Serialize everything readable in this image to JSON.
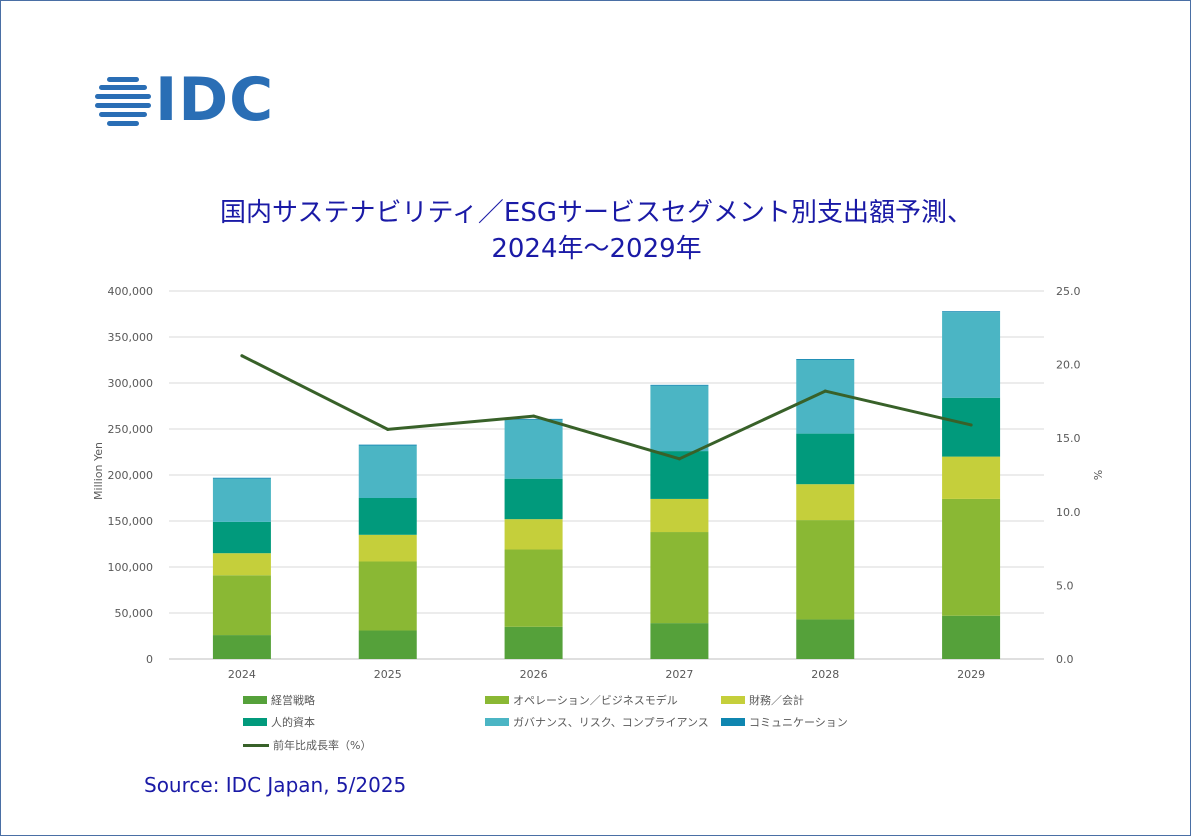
{
  "logo": {
    "text": "IDC"
  },
  "title_line1": "国内サステナビリティ／ESGサービスセグメント別支出額予測、",
  "title_line2": "2024年～2029年",
  "source": "Source: IDC Japan, 5/2025",
  "colors": {
    "keiei": "#55a13a",
    "operation": "#8ab834",
    "zaimu": "#c5cf3b",
    "jinteki": "#019a7c",
    "governance": "#4bb5c4",
    "communication": "#0f86b0",
    "growth": "#386129",
    "title": "#1a1aa6",
    "logo": "#2a6eb5"
  },
  "chart_data": {
    "type": "bar",
    "stacked": true,
    "categories": [
      "2024",
      "2025",
      "2026",
      "2027",
      "2028",
      "2029"
    ],
    "ylabel": "Million Yen",
    "y2label": "%",
    "ylim": [
      0,
      400000
    ],
    "y2lim": [
      0,
      25
    ],
    "yticks": [
      "0",
      "50,000",
      "100,000",
      "150,000",
      "200,000",
      "250,000",
      "300,000",
      "350,000",
      "400,000"
    ],
    "y2ticks": [
      "0.0",
      "5.0",
      "10.0",
      "15.0",
      "20.0",
      "25.0"
    ],
    "series": [
      {
        "key": "keiei",
        "name": "経営戦略",
        "values": [
          26000,
          31000,
          35000,
          39000,
          43000,
          47000
        ]
      },
      {
        "key": "operation",
        "name": "オペレーション／ビジネスモデル",
        "values": [
          65000,
          75000,
          84000,
          99000,
          108000,
          127000
        ]
      },
      {
        "key": "zaimu",
        "name": "財務／会計",
        "values": [
          24000,
          29000,
          33000,
          36000,
          39000,
          46000
        ]
      },
      {
        "key": "jinteki",
        "name": "人的資本",
        "values": [
          34000,
          40000,
          44000,
          52000,
          55000,
          64000
        ]
      },
      {
        "key": "governance",
        "name": "ガバナンス、リスク、コンプライアンス",
        "values": [
          47000,
          57000,
          64000,
          71000,
          80000,
          93000
        ]
      },
      {
        "key": "communication",
        "name": "コミュニケーション",
        "values": [
          1000,
          1000,
          1000,
          1000,
          1000,
          1000
        ]
      }
    ],
    "line": {
      "key": "growth",
      "name": "前年比成長率（%）",
      "axis": "right",
      "values": [
        20.6,
        15.6,
        16.5,
        13.6,
        18.2,
        15.9
      ]
    },
    "grid": true,
    "legend": "bottom"
  }
}
